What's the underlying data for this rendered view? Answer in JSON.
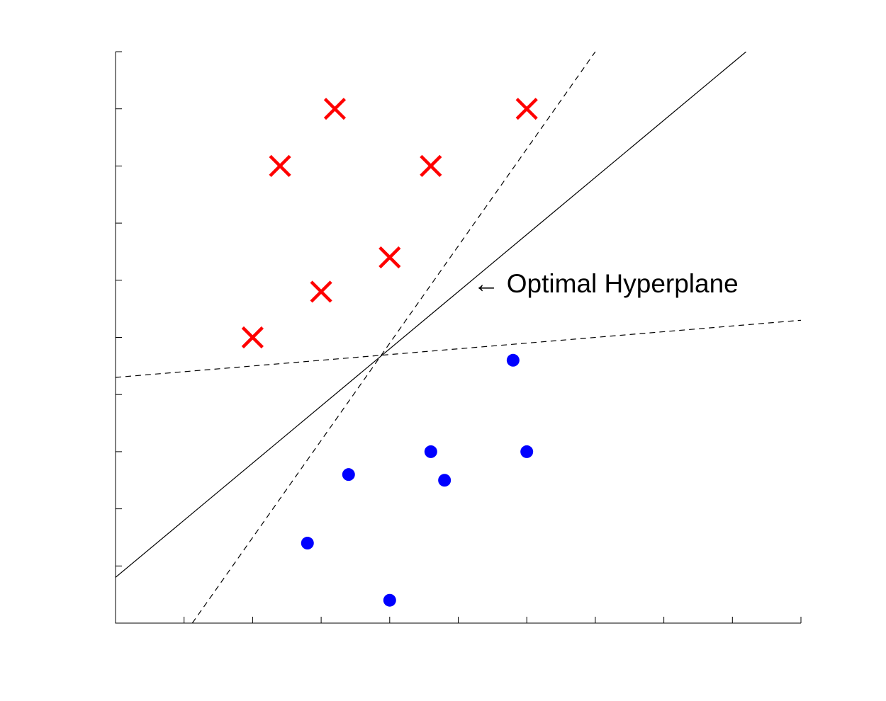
{
  "chart_data": {
    "type": "scatter",
    "title": "",
    "xlabel": "",
    "ylabel": "",
    "xlim": [
      0,
      10
    ],
    "ylim": [
      0,
      10
    ],
    "x_ticks": [
      0,
      1,
      2,
      3,
      4,
      5,
      6,
      7,
      8,
      9,
      10
    ],
    "y_ticks": [
      0,
      1,
      2,
      3,
      4,
      5,
      6,
      7,
      8,
      9,
      10
    ],
    "tick_labels_shown": false,
    "grid": false,
    "series": [
      {
        "marker": "x",
        "color": "#ff0000",
        "points": [
          {
            "x": 3.2,
            "y": 9
          },
          {
            "x": 6,
            "y": 9
          },
          {
            "x": 2.4,
            "y": 8
          },
          {
            "x": 4.6,
            "y": 8
          },
          {
            "x": 4,
            "y": 6.4
          },
          {
            "x": 3,
            "y": 5.8
          },
          {
            "x": 2,
            "y": 5
          }
        ]
      },
      {
        "marker": "circle",
        "color": "#0000ff",
        "points": [
          {
            "x": 5.8,
            "y": 4.6
          },
          {
            "x": 4.6,
            "y": 3
          },
          {
            "x": 6,
            "y": 3
          },
          {
            "x": 3.4,
            "y": 2.6
          },
          {
            "x": 4.8,
            "y": 2.5
          },
          {
            "x": 2.8,
            "y": 1.4
          },
          {
            "x": 4,
            "y": 0.4
          }
        ]
      }
    ],
    "lines": [
      {
        "style": "solid",
        "color": "#000000",
        "from": [
          0,
          0.8
        ],
        "to": [
          9.2,
          10
        ]
      },
      {
        "style": "dashed",
        "color": "#000000",
        "from": [
          1.12,
          0
        ],
        "to": [
          7,
          10
        ]
      },
      {
        "style": "dashed",
        "color": "#000000",
        "from": [
          0,
          4.3
        ],
        "to": [
          10,
          5.3
        ]
      }
    ],
    "annotations": [
      {
        "text": "Optimal Hyperplane",
        "arrow": "←",
        "x": 5.3,
        "y": 5.95
      }
    ]
  }
}
